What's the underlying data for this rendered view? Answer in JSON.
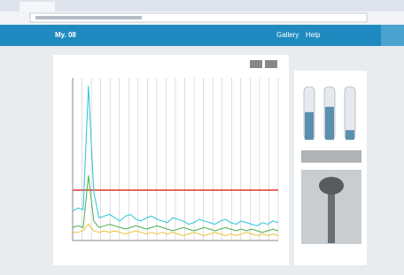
{
  "header": {
    "title": "My. 08",
    "nav": [
      "Gallery",
      "Help"
    ]
  },
  "chart_data": {
    "type": "line",
    "x": [
      0,
      1,
      2,
      3,
      4,
      5,
      6,
      7,
      8,
      9,
      10,
      11,
      12,
      13,
      14,
      15,
      16,
      17,
      18,
      19,
      20,
      21,
      22,
      23,
      24,
      25,
      26,
      27,
      28,
      29,
      30,
      31,
      32,
      33,
      34,
      35,
      36,
      37,
      38,
      39
    ],
    "xlim": [
      0,
      39
    ],
    "ylim": [
      0,
      100
    ],
    "grid": true,
    "series": [
      {
        "color": "#e03a2c",
        "values": [
          31,
          31,
          31,
          31,
          31,
          31,
          31,
          31,
          31,
          31,
          31,
          31,
          31,
          31,
          31,
          31,
          31,
          31,
          31,
          31,
          31,
          31,
          31,
          31,
          31,
          31,
          31,
          31,
          31,
          31,
          31,
          31,
          31,
          31,
          31,
          31,
          31,
          31,
          31,
          31
        ]
      },
      {
        "color": "#2bc4d8",
        "values": [
          18,
          20,
          19,
          95,
          30,
          14,
          15,
          16,
          14,
          12,
          15,
          16,
          13,
          12,
          14,
          15,
          13,
          12,
          11,
          14,
          13,
          12,
          10,
          11,
          13,
          12,
          11,
          10,
          12,
          13,
          11,
          10,
          12,
          11,
          10,
          9,
          11,
          10,
          12,
          11
        ]
      },
      {
        "color": "#4caf50",
        "values": [
          8,
          9,
          8,
          40,
          12,
          8,
          9,
          10,
          9,
          8,
          7,
          8,
          9,
          8,
          7,
          8,
          9,
          8,
          7,
          6,
          7,
          8,
          7,
          6,
          7,
          8,
          7,
          6,
          7,
          8,
          7,
          6,
          7,
          6,
          7,
          6,
          5,
          6,
          7,
          6
        ]
      },
      {
        "color": "#e8c33a",
        "values": [
          5,
          5,
          6,
          10,
          6,
          5,
          6,
          5,
          6,
          5,
          4,
          5,
          6,
          5,
          4,
          5,
          4,
          5,
          4,
          5,
          4,
          3,
          4,
          5,
          4,
          3,
          4,
          5,
          4,
          3,
          4,
          3,
          4,
          5,
          4,
          3,
          4,
          3,
          4,
          3
        ]
      }
    ]
  },
  "gauges": {
    "values": [
      52,
      62,
      18
    ]
  }
}
